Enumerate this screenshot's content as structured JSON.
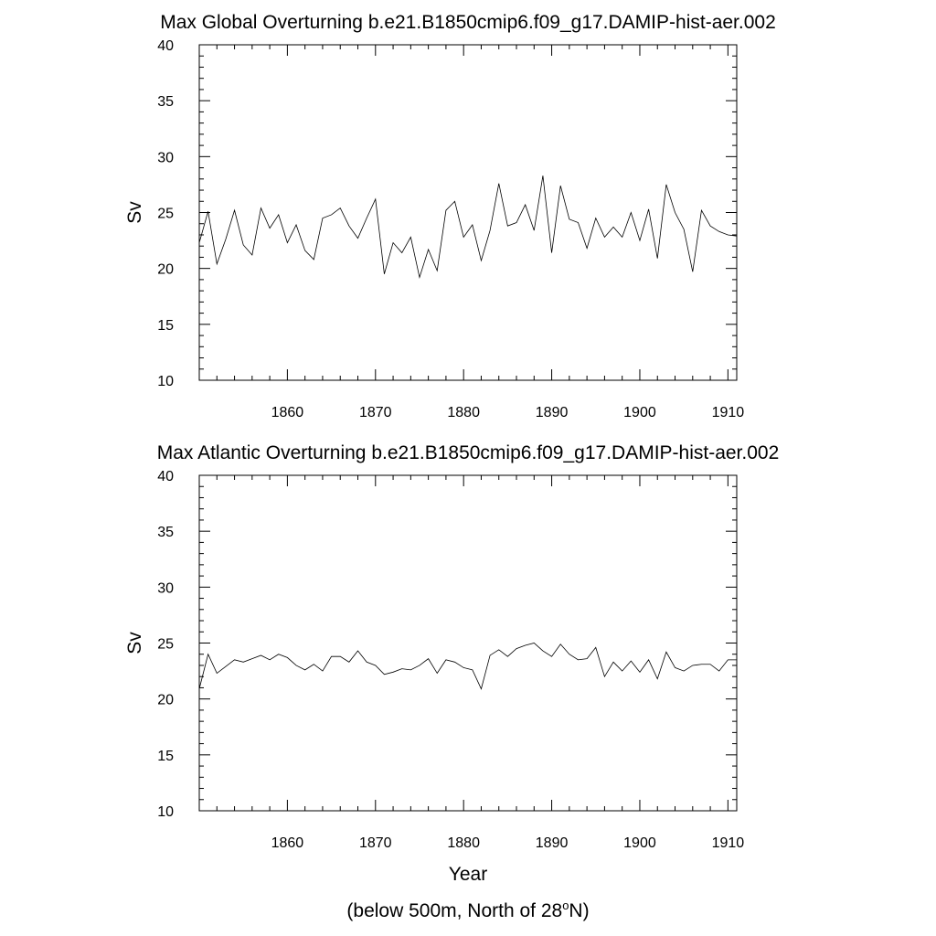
{
  "footnote": {
    "prefix": "(below 500m, North of 28",
    "superscript": "o",
    "suffix": "N)"
  },
  "chart_data": [
    {
      "type": "line",
      "title": "Max Global Overturning b.e21.B1850cmip6.f09_g17.DAMIP-hist-aer.002",
      "xlabel": "",
      "ylabel": "Sv",
      "xlim": [
        1850,
        1911
      ],
      "ylim": [
        10,
        40
      ],
      "xticks": [
        1860,
        1870,
        1880,
        1890,
        1900,
        1910
      ],
      "yticks": [
        10,
        15,
        20,
        25,
        30,
        35,
        40
      ],
      "grid": false,
      "series": [
        {
          "x": [
            1850,
            1851,
            1852,
            1853,
            1854,
            1855,
            1856,
            1857,
            1858,
            1859,
            1860,
            1861,
            1862,
            1863,
            1864,
            1865,
            1866,
            1867,
            1868,
            1869,
            1870,
            1871,
            1872,
            1873,
            1874,
            1875,
            1876,
            1877,
            1878,
            1879,
            1880,
            1881,
            1882,
            1883,
            1884,
            1885,
            1886,
            1887,
            1888,
            1889,
            1890,
            1891,
            1892,
            1893,
            1894,
            1895,
            1896,
            1897,
            1898,
            1899,
            1900,
            1901,
            1902,
            1903,
            1904,
            1905,
            1906,
            1907,
            1908,
            1909,
            1910,
            1911
          ],
          "y": [
            22.3,
            25.1,
            20.4,
            22.6,
            25.2,
            22.1,
            21.2,
            25.4,
            23.6,
            24.8,
            22.3,
            23.9,
            21.6,
            20.8,
            24.5,
            24.8,
            25.4,
            23.8,
            22.7,
            24.5,
            26.2,
            19.5,
            22.3,
            21.4,
            22.8,
            19.2,
            21.7,
            19.8,
            25.2,
            26.0,
            22.8,
            23.9,
            20.7,
            23.4,
            27.6,
            23.8,
            24.1,
            25.7,
            23.4,
            28.3,
            21.4,
            27.4,
            24.4,
            24.1,
            21.8,
            24.5,
            22.8,
            23.7,
            22.8,
            25.0,
            22.5,
            25.3,
            20.9,
            27.5,
            25.0,
            23.5,
            19.7,
            25.2,
            23.8,
            23.3,
            23.0,
            22.9
          ]
        }
      ]
    },
    {
      "type": "line",
      "title": "Max Atlantic Overturning b.e21.B1850cmip6.f09_g17.DAMIP-hist-aer.002",
      "xlabel": "Year",
      "ylabel": "Sv",
      "xlim": [
        1850,
        1911
      ],
      "ylim": [
        10,
        40
      ],
      "xticks": [
        1860,
        1870,
        1880,
        1890,
        1900,
        1910
      ],
      "yticks": [
        10,
        15,
        20,
        25,
        30,
        35,
        40
      ],
      "grid": false,
      "series": [
        {
          "x": [
            1850,
            1851,
            1852,
            1853,
            1854,
            1855,
            1856,
            1857,
            1858,
            1859,
            1860,
            1861,
            1862,
            1863,
            1864,
            1865,
            1866,
            1867,
            1868,
            1869,
            1870,
            1871,
            1872,
            1873,
            1874,
            1875,
            1876,
            1877,
            1878,
            1879,
            1880,
            1881,
            1882,
            1883,
            1884,
            1885,
            1886,
            1887,
            1888,
            1889,
            1890,
            1891,
            1892,
            1893,
            1894,
            1895,
            1896,
            1897,
            1898,
            1899,
            1900,
            1901,
            1902,
            1903,
            1904,
            1905,
            1906,
            1907,
            1908,
            1909,
            1910,
            1911
          ],
          "y": [
            20.9,
            24.0,
            22.3,
            22.9,
            23.5,
            23.3,
            23.6,
            23.9,
            23.5,
            24.0,
            23.7,
            23.0,
            22.6,
            23.1,
            22.5,
            23.8,
            23.8,
            23.3,
            24.3,
            23.3,
            23.0,
            22.2,
            22.4,
            22.7,
            22.6,
            23.0,
            23.6,
            22.3,
            23.5,
            23.3,
            22.8,
            22.6,
            20.9,
            23.9,
            24.4,
            23.8,
            24.5,
            24.8,
            25.0,
            24.3,
            23.8,
            24.9,
            24.0,
            23.5,
            23.6,
            24.6,
            22.0,
            23.3,
            22.5,
            23.4,
            22.4,
            23.5,
            21.8,
            24.2,
            22.8,
            22.5,
            23.0,
            23.1,
            23.1,
            22.5,
            23.5,
            23.5
          ]
        }
      ]
    }
  ]
}
